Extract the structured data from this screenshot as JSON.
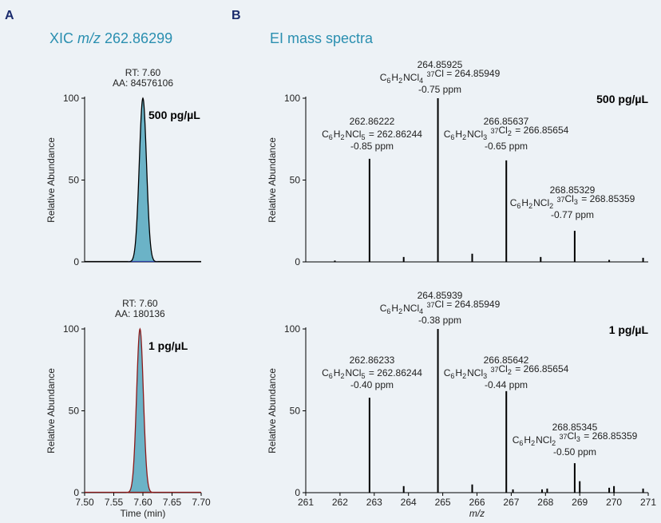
{
  "panels": {
    "a": {
      "letter": "A",
      "title_pre": "XIC ",
      "title_italic": "m/z",
      "title_post": " 262.86299"
    },
    "b": {
      "letter": "B",
      "title": "EI mass spectra"
    }
  },
  "colors": {
    "title": "#2a8fb0",
    "peak_fill": "#6bb3c7",
    "xic_top_line": "#000000",
    "xic_top_base": "#2a3fa0",
    "xic_bottom_line": "#8b1a1a",
    "background": "#edf2f6"
  },
  "chart_data": [
    {
      "id": "xic-top",
      "type": "area",
      "ylabel": "Relative Abundance",
      "xlabel": "",
      "xlim": [
        7.5,
        7.7
      ],
      "ylim": [
        0,
        100
      ],
      "yticks": [
        "0",
        "50",
        "100"
      ],
      "concentration": "500 pg/µL",
      "annotation": [
        "RT: 7.60",
        "AA: 84576106"
      ],
      "peak": {
        "rt": 7.6,
        "height": 100,
        "width": 0.0062
      }
    },
    {
      "id": "xic-bottom",
      "type": "area",
      "ylabel": "Relative Abundance",
      "xlabel": "Time (min)",
      "xlim": [
        7.5,
        7.7
      ],
      "ylim": [
        0,
        100
      ],
      "yticks": [
        "0",
        "50",
        "100"
      ],
      "xticks": [
        "7.50",
        "7.55",
        "7.60",
        "7.65",
        "7.70"
      ],
      "concentration": "1 pg/µL",
      "annotation": [
        "RT: 7.60",
        "AA: 180136"
      ],
      "peak": {
        "rt": 7.595,
        "height": 100,
        "width": 0.0058
      }
    },
    {
      "id": "ms-top",
      "type": "bar",
      "ylabel": "Relative Abundance",
      "xlabel": "",
      "xlim": [
        261,
        271
      ],
      "ylim": [
        0,
        100
      ],
      "yticks": [
        "0",
        "50",
        "100"
      ],
      "concentration": "500 pg/µL",
      "peaks": [
        {
          "mz": 261.85,
          "height": 0.8
        },
        {
          "mz": 262.862,
          "height": 63
        },
        {
          "mz": 263.86,
          "height": 3
        },
        {
          "mz": 264.859,
          "height": 100
        },
        {
          "mz": 265.86,
          "height": 5
        },
        {
          "mz": 266.856,
          "height": 62
        },
        {
          "mz": 267.86,
          "height": 3
        },
        {
          "mz": 268.853,
          "height": 19
        },
        {
          "mz": 269.86,
          "height": 1.2
        },
        {
          "mz": 270.85,
          "height": 2.5
        }
      ],
      "labels": [
        {
          "lines": [
            "262.86222",
            "C6H2NCl5 = 262.86244",
            "-0.85 ppm"
          ]
        },
        {
          "lines": [
            "264.85925",
            "C6H2NCl4 37Cl = 264.85949",
            "-0.75 ppm"
          ]
        },
        {
          "lines": [
            "266.85637",
            "C6H2NCl3 37Cl2 = 266.85654",
            "-0.65 ppm"
          ]
        },
        {
          "lines": [
            "268.85329",
            "C6H2NCl2 37Cl3 = 268.85359",
            "-0.77 ppm"
          ]
        }
      ]
    },
    {
      "id": "ms-bottom",
      "type": "bar",
      "ylabel": "Relative Abundance",
      "xlabel": "m/z",
      "xlim": [
        261,
        271
      ],
      "ylim": [
        0,
        100
      ],
      "yticks": [
        "0",
        "50",
        "100"
      ],
      "xticks": [
        "261",
        "262",
        "263",
        "264",
        "265",
        "266",
        "267",
        "268",
        "269",
        "270",
        "271"
      ],
      "concentration": "1 pg/µL",
      "peaks": [
        {
          "mz": 262.862,
          "height": 58
        },
        {
          "mz": 263.86,
          "height": 4
        },
        {
          "mz": 264.859,
          "height": 100
        },
        {
          "mz": 265.86,
          "height": 5
        },
        {
          "mz": 266.856,
          "height": 62
        },
        {
          "mz": 267.05,
          "height": 2
        },
        {
          "mz": 267.9,
          "height": 2
        },
        {
          "mz": 268.05,
          "height": 2.5
        },
        {
          "mz": 268.853,
          "height": 18
        },
        {
          "mz": 269.0,
          "height": 7
        },
        {
          "mz": 269.86,
          "height": 3
        },
        {
          "mz": 270.0,
          "height": 4
        },
        {
          "mz": 270.85,
          "height": 2.5
        }
      ],
      "labels": [
        {
          "lines": [
            "262.86233",
            "C6H2NCl5 = 262.86244",
            "-0.40 ppm"
          ]
        },
        {
          "lines": [
            "264.85939",
            "C6H2NCl4 37Cl = 264.85949",
            "-0.38 ppm"
          ]
        },
        {
          "lines": [
            "266.85642",
            "C6H2NCl3 37Cl2 = 266.85654",
            "-0.44 ppm"
          ]
        },
        {
          "lines": [
            "268.85345",
            "C6H2NCl2 37Cl3 = 268.85359",
            "-0.50 ppm"
          ]
        }
      ]
    }
  ]
}
